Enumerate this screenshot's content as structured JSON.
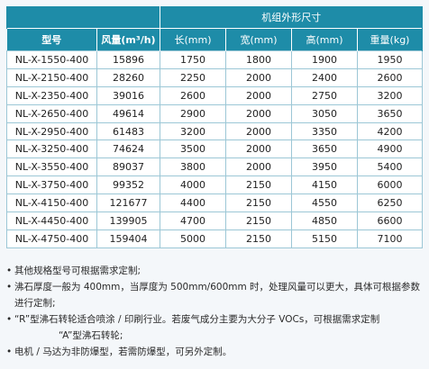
{
  "table": {
    "group_header": "机组外形尺寸",
    "columns": [
      "型号",
      "风量(m³/h)",
      "长(mm)",
      "宽(mm)",
      "高(mm)",
      "重量(kg)"
    ],
    "rows": [
      [
        "NL-X-1550-400",
        "15896",
        "1750",
        "1800",
        "1900",
        "1950"
      ],
      [
        "NL-X-2150-400",
        "28260",
        "2250",
        "2000",
        "2400",
        "2600"
      ],
      [
        "NL-X-2350-400",
        "39016",
        "2600",
        "2000",
        "2750",
        "3200"
      ],
      [
        "NL-X-2650-400",
        "49614",
        "2900",
        "2000",
        "3050",
        "3650"
      ],
      [
        "NL-X-2950-400",
        "61483",
        "3200",
        "2000",
        "3350",
        "4200"
      ],
      [
        "NL-X-3250-400",
        "74624",
        "3500",
        "2000",
        "3650",
        "4900"
      ],
      [
        "NL-X-3550-400",
        "89037",
        "3800",
        "2000",
        "3950",
        "5400"
      ],
      [
        "NL-X-3750-400",
        "99352",
        "4000",
        "2150",
        "4150",
        "6000"
      ],
      [
        "NL-X-4150-400",
        "121677",
        "4400",
        "2150",
        "4550",
        "6250"
      ],
      [
        "NL-X-4450-400",
        "139905",
        "4700",
        "2150",
        "4850",
        "6600"
      ],
      [
        "NL-X-4750-400",
        "159404",
        "5000",
        "2150",
        "5150",
        "7100"
      ]
    ]
  },
  "notes": {
    "bullet": "•",
    "items": [
      "其他规格型号可根据需求定制;",
      "沸石厚度一般为 400mm，当厚度为 500mm/600mm 时，处理风量可以更大，具体可根据参数进行定制;",
      "“R”型沸石转轮适合喷涂 / 印刷行业。若废气成分主要为大分子 VOCs，可根据需求定制",
      "“A”型沸石转轮;",
      "电机 / 马达为非防爆型，若需防爆型，可另外定制。"
    ]
  }
}
